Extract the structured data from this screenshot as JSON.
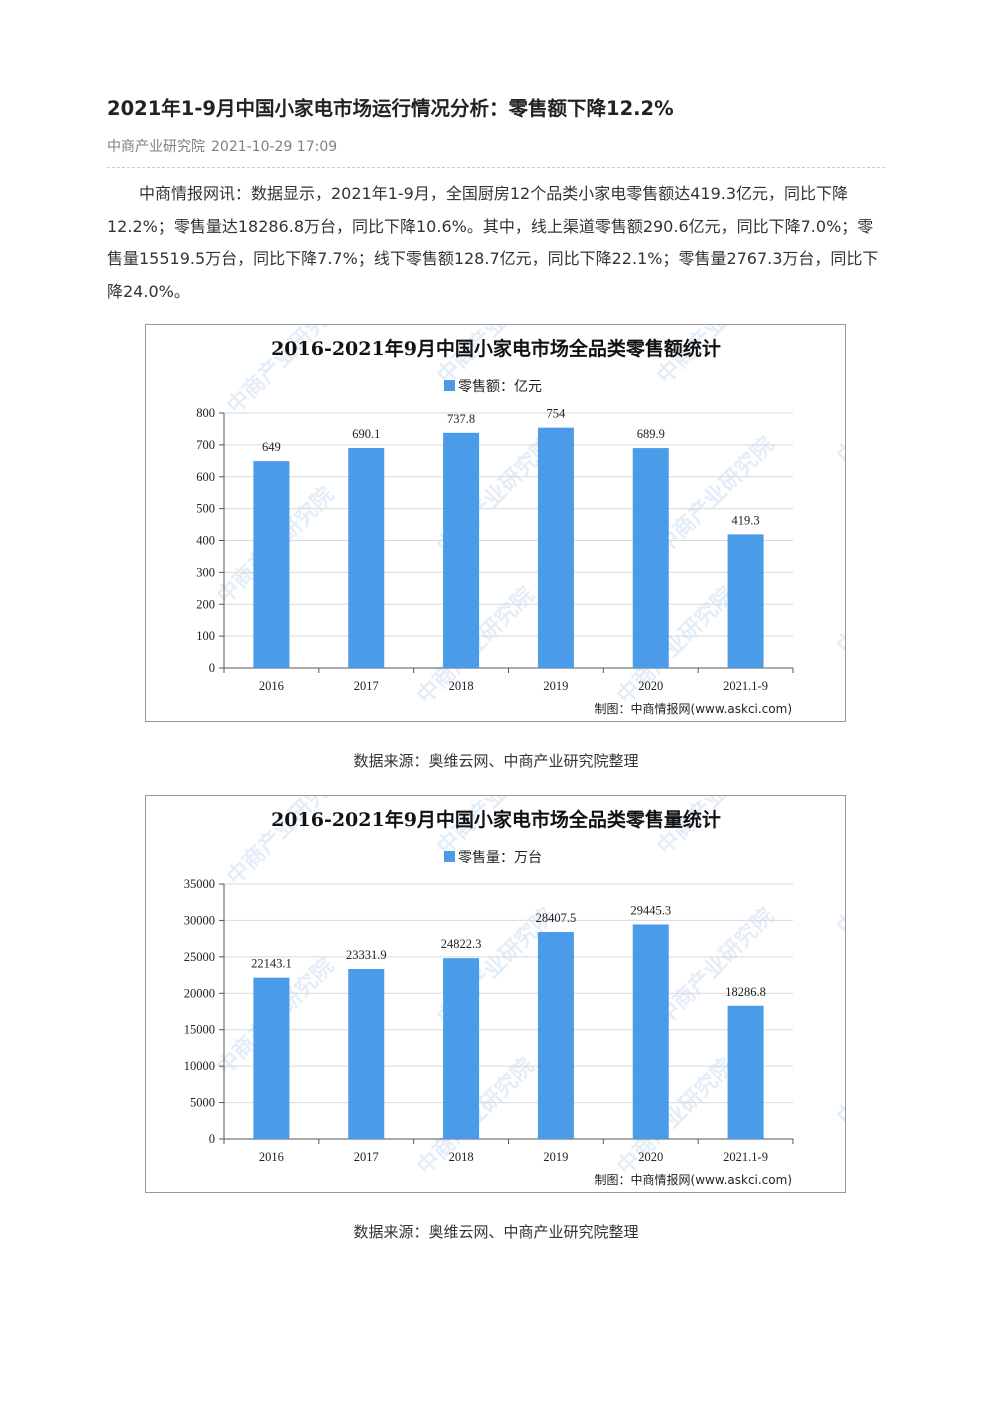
{
  "article": {
    "title": "2021年1-9月中国小家电市场运行情况分析：零售额下降12.2%",
    "source": "中商产业研究院",
    "datetime": "2021-10-29 17:09",
    "paragraph": "中商情报网讯：数据显示，2021年1-9月，全国厨房12个品类小家电零售额达419.3亿元，同比下降12.2%；零售量达18286.8万台，同比下降10.6%。其中，线上渠道零售额290.6亿元，同比下降7.0%；零售量15519.5万台，同比下降7.7%；线下零售额128.7亿元，同比下降22.1%；零售量2767.3万台，同比下降24.0%。"
  },
  "captions": [
    "数据来源：奥维云网、中商产业研究院整理",
    "数据来源：奥维云网、中商产业研究院整理"
  ],
  "watermark": "中商产业研究院",
  "colors": {
    "bar": "#4a9be8",
    "grid": "#d9d9d9",
    "watermark": "#9ec6ea"
  },
  "chart_data": [
    {
      "type": "bar",
      "title": "2016-2021年9月中国小家电市场全品类零售额统计",
      "legend": "零售额：亿元",
      "legend_position": "top-center",
      "categories": [
        "2016",
        "2017",
        "2018",
        "2019",
        "2020",
        "2021.1-9"
      ],
      "values": [
        649,
        690.1,
        737.8,
        754,
        689.9,
        419.3
      ],
      "value_labels": [
        "649",
        "690.1",
        "737.8",
        "754",
        "689.9",
        "419.3"
      ],
      "yticks": [
        "0",
        "100",
        "200",
        "300",
        "400",
        "500",
        "600",
        "700",
        "800"
      ],
      "ylim": [
        0,
        800
      ],
      "grid": true,
      "credit": "制图：中商情报网(www.askci.com)"
    },
    {
      "type": "bar",
      "title": "2016-2021年9月中国小家电市场全品类零售量统计",
      "legend": "零售量：万台",
      "legend_position": "top-center",
      "categories": [
        "2016",
        "2017",
        "2018",
        "2019",
        "2020",
        "2021.1-9"
      ],
      "values": [
        22143.1,
        23331.9,
        24822.3,
        28407.5,
        29445.3,
        18286.8
      ],
      "value_labels": [
        "22143.1",
        "23331.9",
        "24822.3",
        "28407.5",
        "29445.3",
        "18286.8"
      ],
      "yticks": [
        "0",
        "5000",
        "10000",
        "15000",
        "20000",
        "25000",
        "30000",
        "35000"
      ],
      "ylim": [
        0,
        35000
      ],
      "grid": true,
      "credit": "制图：中商情报网(www.askci.com)"
    }
  ]
}
